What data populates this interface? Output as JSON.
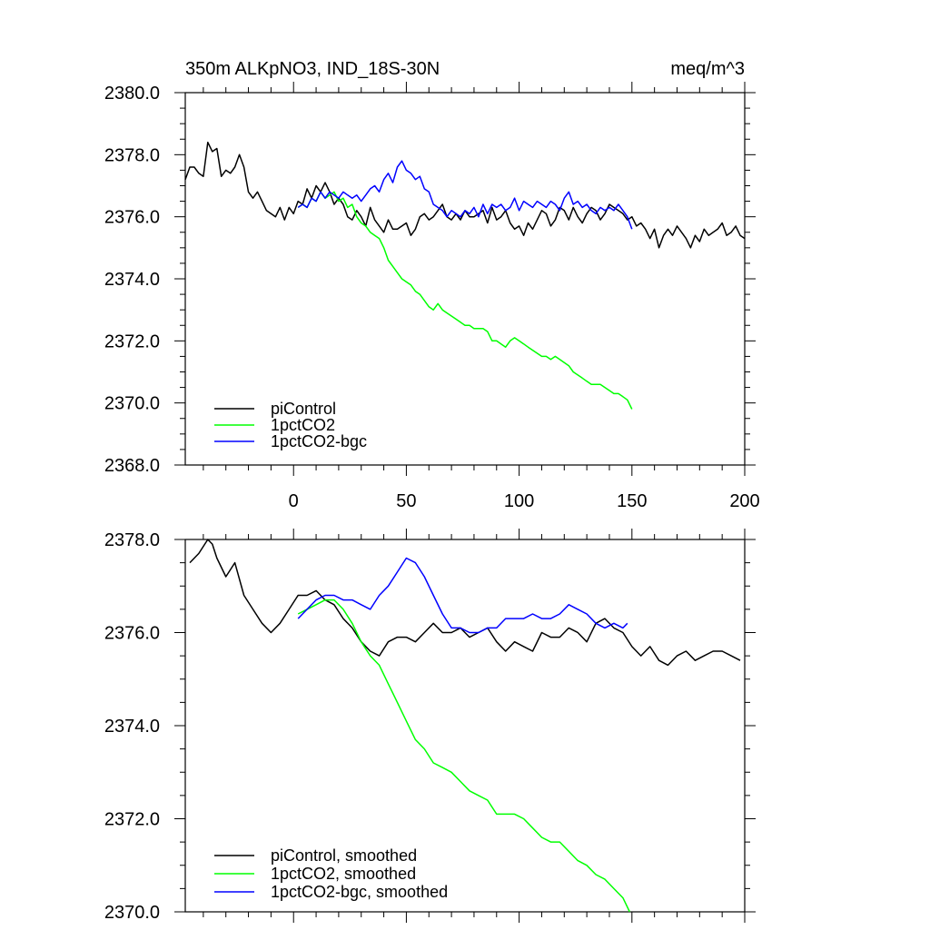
{
  "colors": {
    "piControl": "#000000",
    "1pctCO2": "#00ff00",
    "1pctCO2-bgc": "#0000ff"
  },
  "chart_data": [
    {
      "type": "line",
      "title": "350m ALKpNO3, IND_18S-30N",
      "units": "meq/m^3",
      "xlim": [
        -48,
        200
      ],
      "ylim": [
        2368.0,
        2380.0
      ],
      "xticks": [
        0,
        50,
        100,
        150,
        200
      ],
      "yticks": [
        2368.0,
        2370.0,
        2372.0,
        2374.0,
        2376.0,
        2378.0,
        2380.0
      ],
      "ytick_labels": [
        "2368.0",
        "2370.0",
        "2372.0",
        "2374.0",
        "2376.0",
        "2378.0",
        "2380.0"
      ],
      "xtick_labels": [
        "0",
        "50",
        "100",
        "150",
        "200"
      ],
      "legend_position": "bottom-left",
      "series": [
        {
          "name": "piControl",
          "color_key": "piControl",
          "x": [
            -48,
            -46,
            -44,
            -42,
            -40,
            -38,
            -36,
            -34,
            -32,
            -30,
            -28,
            -26,
            -24,
            -22,
            -20,
            -18,
            -16,
            -14,
            -12,
            -10,
            -8,
            -6,
            -4,
            -2,
            0,
            2,
            4,
            6,
            8,
            10,
            12,
            14,
            16,
            18,
            20,
            22,
            24,
            26,
            28,
            30,
            32,
            34,
            36,
            38,
            40,
            42,
            44,
            46,
            48,
            50,
            52,
            54,
            56,
            58,
            60,
            62,
            64,
            66,
            68,
            70,
            72,
            74,
            76,
            78,
            80,
            82,
            84,
            86,
            88,
            90,
            92,
            94,
            96,
            98,
            100,
            102,
            104,
            106,
            108,
            110,
            112,
            114,
            116,
            118,
            120,
            122,
            124,
            126,
            128,
            130,
            132,
            134,
            136,
            138,
            140,
            142,
            144,
            146,
            148,
            150,
            152,
            154,
            156,
            158,
            160,
            162,
            164,
            166,
            168,
            170,
            172,
            174,
            176,
            178,
            180,
            182,
            184,
            186,
            188,
            190,
            192,
            194,
            196,
            198,
            200
          ],
          "y": [
            2377.2,
            2377.6,
            2377.6,
            2377.4,
            2377.3,
            2378.4,
            2378.1,
            2378.2,
            2377.3,
            2377.5,
            2377.4,
            2377.6,
            2378.0,
            2377.6,
            2376.8,
            2376.6,
            2376.8,
            2376.5,
            2376.2,
            2376.1,
            2376.0,
            2376.3,
            2375.9,
            2376.3,
            2376.1,
            2376.5,
            2376.4,
            2376.9,
            2376.6,
            2377.0,
            2376.8,
            2377.1,
            2376.8,
            2376.4,
            2376.6,
            2376.4,
            2376.0,
            2375.9,
            2376.2,
            2376.0,
            2375.7,
            2376.3,
            2375.9,
            2375.7,
            2375.5,
            2375.9,
            2375.6,
            2375.6,
            2375.7,
            2375.8,
            2375.4,
            2375.6,
            2376.0,
            2376.1,
            2375.9,
            2376.0,
            2376.2,
            2376.4,
            2376.0,
            2375.9,
            2376.1,
            2375.9,
            2376.2,
            2376.0,
            2376.0,
            2376.1,
            2376.2,
            2375.8,
            2376.3,
            2375.9,
            2376.0,
            2376.2,
            2375.8,
            2375.6,
            2375.7,
            2375.4,
            2375.8,
            2375.6,
            2375.9,
            2376.2,
            2376.1,
            2375.7,
            2375.9,
            2376.3,
            2376.2,
            2375.9,
            2376.3,
            2376.0,
            2375.8,
            2376.1,
            2376.3,
            2376.2,
            2375.9,
            2376.1,
            2376.4,
            2376.3,
            2376.2,
            2376.1,
            2375.9,
            2376.0,
            2375.7,
            2375.8,
            2375.6,
            2375.3,
            2375.6,
            2375.0,
            2375.4,
            2375.6,
            2375.4,
            2375.7,
            2375.5,
            2375.3,
            2375.0,
            2375.4,
            2375.2,
            2375.6,
            2375.4,
            2375.5,
            2375.6,
            2375.8,
            2375.4,
            2375.5,
            2375.7,
            2375.4,
            2375.3
          ]
        },
        {
          "name": "1pctCO2",
          "color_key": "1pctCO2",
          "x": [
            2,
            4,
            6,
            8,
            10,
            12,
            14,
            16,
            18,
            20,
            22,
            24,
            26,
            28,
            30,
            32,
            34,
            36,
            38,
            40,
            42,
            44,
            46,
            48,
            50,
            52,
            54,
            56,
            58,
            60,
            62,
            64,
            66,
            68,
            70,
            72,
            74,
            76,
            78,
            80,
            82,
            84,
            86,
            88,
            90,
            92,
            94,
            96,
            98,
            100,
            102,
            104,
            106,
            108,
            110,
            112,
            114,
            116,
            118,
            120,
            122,
            124,
            126,
            128,
            130,
            132,
            134,
            136,
            138,
            140,
            142,
            144,
            146,
            148,
            150
          ],
          "y": [
            2376.3,
            2376.4,
            2376.3,
            2376.6,
            2376.5,
            2376.8,
            2376.6,
            2376.7,
            2376.8,
            2376.5,
            2376.6,
            2376.3,
            2376.4,
            2376.0,
            2375.8,
            2375.7,
            2375.5,
            2375.4,
            2375.3,
            2375.0,
            2374.6,
            2374.4,
            2374.2,
            2374.0,
            2373.9,
            2373.8,
            2373.6,
            2373.5,
            2373.3,
            2373.1,
            2373.0,
            2373.2,
            2373.0,
            2372.9,
            2372.8,
            2372.7,
            2372.6,
            2372.5,
            2372.5,
            2372.4,
            2372.4,
            2372.4,
            2372.3,
            2372.0,
            2372.0,
            2371.9,
            2371.8,
            2372.0,
            2372.1,
            2372.0,
            2371.9,
            2371.8,
            2371.7,
            2371.6,
            2371.5,
            2371.5,
            2371.4,
            2371.5,
            2371.4,
            2371.3,
            2371.2,
            2371.0,
            2370.9,
            2370.8,
            2370.7,
            2370.6,
            2370.6,
            2370.6,
            2370.5,
            2370.4,
            2370.3,
            2370.3,
            2370.2,
            2370.1,
            2369.8
          ]
        },
        {
          "name": "1pctCO2-bgc",
          "color_key": "1pctCO2-bgc",
          "x": [
            2,
            4,
            6,
            8,
            10,
            12,
            14,
            16,
            18,
            20,
            22,
            24,
            26,
            28,
            30,
            32,
            34,
            36,
            38,
            40,
            42,
            44,
            46,
            48,
            50,
            52,
            54,
            56,
            58,
            60,
            62,
            64,
            66,
            68,
            70,
            72,
            74,
            76,
            78,
            80,
            82,
            84,
            86,
            88,
            90,
            92,
            94,
            96,
            98,
            100,
            102,
            104,
            106,
            108,
            110,
            112,
            114,
            116,
            118,
            120,
            122,
            124,
            126,
            128,
            130,
            132,
            134,
            136,
            138,
            140,
            142,
            144,
            146,
            148,
            150
          ],
          "y": [
            2376.3,
            2376.4,
            2376.3,
            2376.6,
            2376.5,
            2376.8,
            2376.6,
            2376.8,
            2376.7,
            2376.6,
            2376.8,
            2376.7,
            2376.6,
            2376.7,
            2376.5,
            2376.7,
            2376.9,
            2377.0,
            2376.8,
            2377.2,
            2377.4,
            2377.1,
            2377.6,
            2377.8,
            2377.5,
            2377.4,
            2377.2,
            2377.3,
            2376.9,
            2376.8,
            2376.4,
            2376.3,
            2376.2,
            2376.0,
            2376.2,
            2376.1,
            2376.0,
            2376.2,
            2376.1,
            2376.3,
            2376.0,
            2376.4,
            2376.1,
            2376.4,
            2376.3,
            2376.4,
            2376.2,
            2376.3,
            2376.6,
            2376.2,
            2376.5,
            2376.4,
            2376.3,
            2376.5,
            2376.4,
            2376.3,
            2376.5,
            2376.4,
            2376.2,
            2376.6,
            2376.8,
            2376.4,
            2376.5,
            2376.3,
            2376.4,
            2376.2,
            2376.1,
            2376.3,
            2376.2,
            2376.3,
            2376.2,
            2376.4,
            2376.2,
            2376.0,
            2375.6
          ]
        }
      ]
    },
    {
      "type": "line",
      "title": "",
      "xlim": [
        -48,
        200
      ],
      "ylim": [
        2370.0,
        2378.0
      ],
      "xticks": [
        0,
        50,
        100,
        150,
        200
      ],
      "yticks": [
        2370.0,
        2372.0,
        2374.0,
        2376.0,
        2378.0
      ],
      "ytick_labels": [
        "2370.0",
        "2372.0",
        "2374.0",
        "2376.0",
        "2378.0"
      ],
      "legend_position": "bottom-left",
      "series": [
        {
          "name": "piControl, smoothed",
          "color_key": "piControl",
          "x": [
            -46,
            -42,
            -38,
            -36,
            -34,
            -30,
            -26,
            -22,
            -18,
            -14,
            -10,
            -6,
            -2,
            2,
            6,
            10,
            14,
            18,
            22,
            26,
            30,
            34,
            38,
            42,
            46,
            50,
            54,
            58,
            62,
            66,
            70,
            74,
            78,
            82,
            86,
            90,
            94,
            98,
            102,
            106,
            110,
            114,
            118,
            122,
            126,
            130,
            134,
            138,
            142,
            146,
            150,
            154,
            158,
            162,
            166,
            170,
            174,
            178,
            182,
            186,
            190,
            194,
            198
          ],
          "y": [
            2377.5,
            2377.7,
            2378.0,
            2377.9,
            2377.6,
            2377.2,
            2377.5,
            2376.8,
            2376.5,
            2376.2,
            2376.0,
            2376.2,
            2376.5,
            2376.8,
            2376.8,
            2376.9,
            2376.7,
            2376.6,
            2376.3,
            2376.1,
            2375.8,
            2375.6,
            2375.5,
            2375.8,
            2375.9,
            2375.9,
            2375.8,
            2376.0,
            2376.2,
            2376.0,
            2376.0,
            2376.1,
            2375.9,
            2376.0,
            2376.1,
            2375.8,
            2375.6,
            2375.8,
            2375.7,
            2375.6,
            2376.0,
            2375.9,
            2375.9,
            2376.1,
            2376.0,
            2375.8,
            2376.2,
            2376.3,
            2376.1,
            2376.0,
            2375.7,
            2375.5,
            2375.7,
            2375.4,
            2375.3,
            2375.5,
            2375.6,
            2375.4,
            2375.5,
            2375.6,
            2375.6,
            2375.5,
            2375.4
          ]
        },
        {
          "name": "1pctCO2, smoothed",
          "color_key": "1pctCO2",
          "x": [
            2,
            6,
            10,
            14,
            18,
            22,
            26,
            30,
            34,
            38,
            42,
            46,
            50,
            54,
            58,
            62,
            66,
            70,
            74,
            78,
            82,
            86,
            90,
            94,
            98,
            102,
            106,
            110,
            114,
            118,
            122,
            126,
            130,
            134,
            138,
            142,
            146,
            149
          ],
          "y": [
            2376.4,
            2376.5,
            2376.6,
            2376.7,
            2376.7,
            2376.5,
            2376.2,
            2375.8,
            2375.5,
            2375.3,
            2374.9,
            2374.5,
            2374.1,
            2373.7,
            2373.5,
            2373.2,
            2373.1,
            2373.0,
            2372.8,
            2372.6,
            2372.5,
            2372.4,
            2372.1,
            2372.1,
            2372.1,
            2372.0,
            2371.8,
            2371.6,
            2371.5,
            2371.5,
            2371.3,
            2371.1,
            2371.0,
            2370.8,
            2370.7,
            2370.5,
            2370.3,
            2370.0
          ]
        },
        {
          "name": "1pctCO2-bgc, smoothed",
          "color_key": "1pctCO2-bgc",
          "x": [
            2,
            6,
            10,
            14,
            18,
            22,
            26,
            30,
            34,
            38,
            42,
            46,
            50,
            54,
            58,
            62,
            66,
            70,
            74,
            78,
            82,
            86,
            90,
            94,
            98,
            102,
            106,
            110,
            114,
            118,
            122,
            126,
            130,
            134,
            138,
            142,
            146,
            148
          ],
          "y": [
            2376.3,
            2376.5,
            2376.7,
            2376.8,
            2376.8,
            2376.7,
            2376.7,
            2376.6,
            2376.5,
            2376.8,
            2377.0,
            2377.3,
            2377.6,
            2377.5,
            2377.2,
            2376.8,
            2376.4,
            2376.1,
            2376.1,
            2376.0,
            2376.0,
            2376.1,
            2376.1,
            2376.3,
            2376.3,
            2376.3,
            2376.4,
            2376.3,
            2376.3,
            2376.4,
            2376.6,
            2376.5,
            2376.4,
            2376.2,
            2376.1,
            2376.2,
            2376.1,
            2376.2
          ]
        }
      ]
    }
  ]
}
